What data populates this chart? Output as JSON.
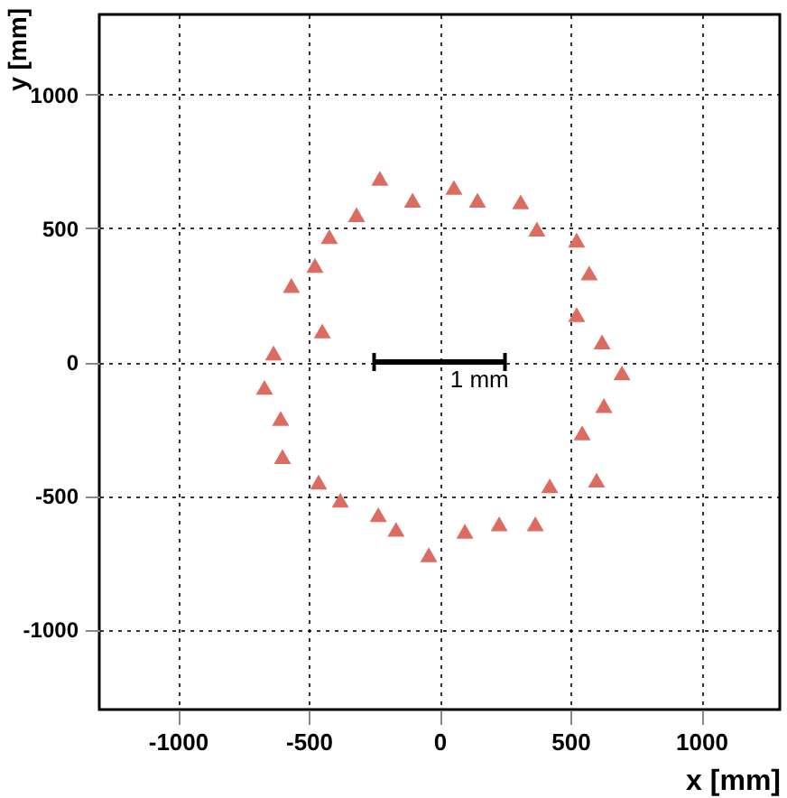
{
  "chart_data": {
    "type": "scatter",
    "xlabel": "x [mm]",
    "ylabel": "y [mm]",
    "x": [
      -228,
      -103,
      55,
      145,
      310,
      372,
      524,
      572,
      524,
      621,
      697,
      628,
      545,
      600,
      421,
      366,
      228,
      97,
      -41,
      -166,
      -234,
      -379,
      -462,
      -600,
      -607,
      -669,
      -634,
      -448,
      -566,
      -476,
      -421,
      -317
    ],
    "series": [
      {
        "color": "#dc6b62",
        "values": [
          687,
          605,
          653,
          605,
          599,
          497,
          456,
          333,
          177,
          75,
          -41,
          -163,
          -265,
          -442,
          -463,
          -605,
          -605,
          -633,
          -721,
          -626,
          -571,
          -517,
          -449,
          -354,
          -211,
          -95,
          34,
          116,
          286,
          361,
          469,
          551
        ]
      }
    ],
    "xlim": [
      -1300,
      1300
    ],
    "ylim": [
      -1300,
      1300
    ],
    "xticks": [
      -1000,
      -500,
      0,
      500,
      1000
    ],
    "yticks": [
      -1000,
      -500,
      0,
      500,
      1000
    ],
    "grid": true,
    "marker": "triangle",
    "annotations": [
      "1 mm"
    ]
  }
}
